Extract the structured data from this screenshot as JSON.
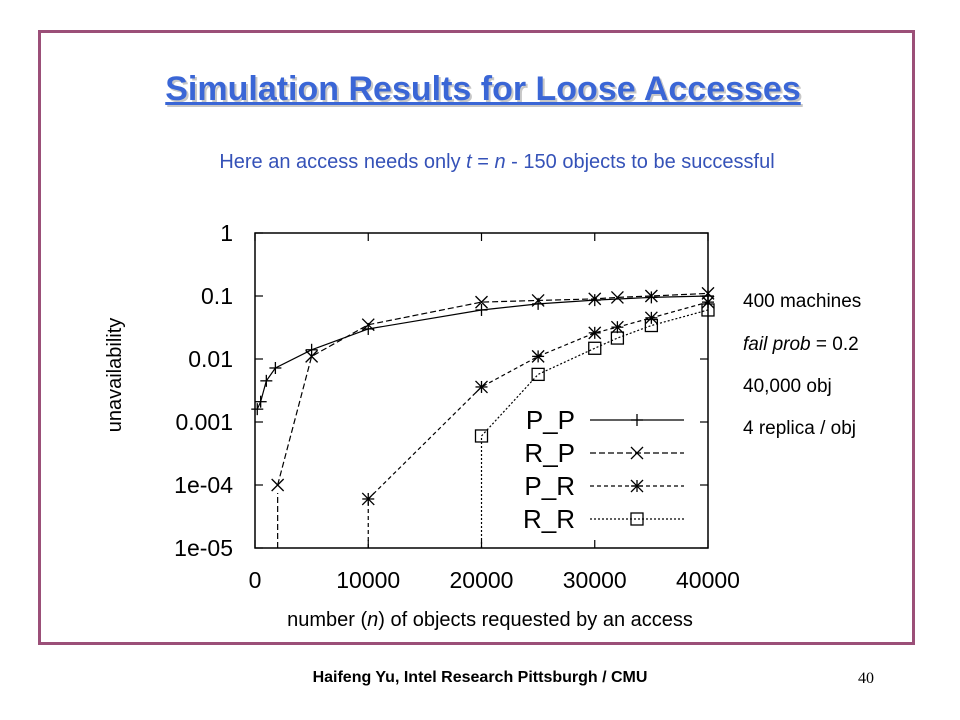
{
  "slide": {
    "title": "Simulation Results for Loose Accesses",
    "subtitle": {
      "p1": "Here an access needs only ",
      "t": "t",
      "p2": " = ",
      "n": "n",
      "p3": " - 150 objects to be successful"
    },
    "notes": {
      "machines": "400 machines",
      "fail_prob_label": "fail prob",
      "fail_prob_value": " = 0.2",
      "objects": "40,000 obj",
      "replica": "4 replica / obj"
    },
    "footer": "Haifeng Yu, Intel Research Pittsburgh / CMU",
    "page_number": "40"
  },
  "chart_data": {
    "type": "line",
    "xlabel": {
      "p1": "number (",
      "n": "n",
      "p2": ") of objects requested by an access"
    },
    "ylabel": "unavailability",
    "y_scale": "log",
    "xlim": [
      0,
      40000
    ],
    "ylim": [
      1e-05,
      1
    ],
    "x_ticks": [
      0,
      10000,
      20000,
      30000,
      40000
    ],
    "x_tick_labels": [
      "0",
      "10000",
      "20000",
      "30000",
      "40000"
    ],
    "y_ticks": [
      1e-05,
      0.0001,
      0.001,
      0.01,
      0.1,
      1
    ],
    "y_tick_labels": [
      "1e-05",
      "1e-04",
      "0.001",
      "0.01",
      "0.1",
      "1"
    ],
    "legend_position": "bottom-right",
    "series": [
      {
        "name": "P_P",
        "marker": "plus",
        "dash": "",
        "x": [
          200,
          500,
          1000,
          1800,
          5000,
          10000,
          20000,
          25000,
          30000,
          35000,
          40000
        ],
        "y": [
          0.0016,
          0.0021,
          0.0045,
          0.0072,
          0.014,
          0.03,
          0.06,
          0.075,
          0.086,
          0.095,
          0.1
        ]
      },
      {
        "name": "R_P",
        "marker": "x",
        "dash": "6 3",
        "x": [
          2000,
          5000,
          10000,
          20000,
          25000,
          30000,
          32000,
          35000,
          40000
        ],
        "y": [
          0.0001,
          0.011,
          0.035,
          0.08,
          0.085,
          0.09,
          0.095,
          0.1,
          0.11
        ]
      },
      {
        "name": "P_R",
        "marker": "star",
        "dash": "4 3",
        "drop_from_x": 10000,
        "x": [
          10000,
          20000,
          25000,
          30000,
          32000,
          35000,
          40000
        ],
        "y": [
          6e-05,
          0.0036,
          0.011,
          0.026,
          0.032,
          0.045,
          0.08
        ]
      },
      {
        "name": "R_R",
        "marker": "square",
        "dash": "2 2",
        "drop_from_x": 20000,
        "x": [
          20000,
          25000,
          30000,
          32000,
          35000,
          40000
        ],
        "y": [
          0.0006,
          0.0057,
          0.0148,
          0.0215,
          0.034,
          0.06
        ]
      }
    ]
  }
}
